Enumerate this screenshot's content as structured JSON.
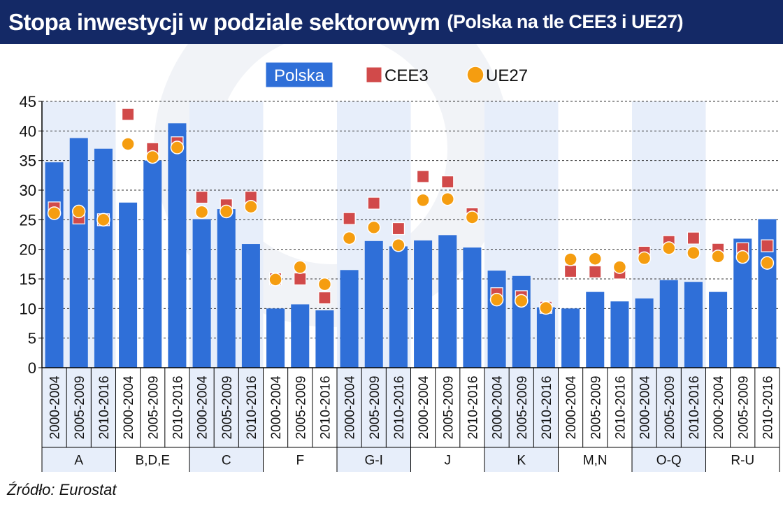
{
  "title": "Stopa inwestycji w podziale sektorowym",
  "subtitle": "(Polska na tle CEE3 i UE27)",
  "source": "Źródło: Eurostat",
  "colors": {
    "header_bg": "#142966",
    "bar": "#2f6fd8",
    "cee3": "#d14a4a",
    "ue27": "#f59d10",
    "band": "#e7eefa"
  },
  "chart_data": {
    "type": "bar",
    "ylim": [
      0,
      45
    ],
    "yticks": [
      "0",
      "5",
      "10",
      "15",
      "20",
      "25",
      "30",
      "35",
      "40",
      "45"
    ],
    "grid": true,
    "legend_position": "top-center",
    "groups": [
      {
        "label": "A",
        "categories": [
          "2000-2004",
          "2005-2009",
          "2010-2016"
        ]
      },
      {
        "label": "B,D,E",
        "categories": [
          "2000-2004",
          "2005-2009",
          "2010-2016"
        ]
      },
      {
        "label": "C",
        "categories": [
          "2000-2004",
          "2005-2009",
          "2010-2016"
        ]
      },
      {
        "label": "F",
        "categories": [
          "2000-2004",
          "2005-2009",
          "2010-2016"
        ]
      },
      {
        "label": "G-I",
        "categories": [
          "2000-2004",
          "2005-2009",
          "2010-2016"
        ]
      },
      {
        "label": "J",
        "categories": [
          "2000-2004",
          "2005-2009",
          "2010-2016"
        ]
      },
      {
        "label": "K",
        "categories": [
          "2000-2004",
          "2005-2009",
          "2010-2016"
        ]
      },
      {
        "label": "M,N",
        "categories": [
          "2000-2004",
          "2005-2009",
          "2010-2016"
        ]
      },
      {
        "label": "O-Q",
        "categories": [
          "2000-2004",
          "2005-2009",
          "2010-2016"
        ]
      },
      {
        "label": "R-U",
        "categories": [
          "2000-2004",
          "2005-2009",
          "2010-2016"
        ]
      }
    ],
    "series": [
      {
        "name": "Polska",
        "type": "bar",
        "values": [
          34.7,
          38.8,
          37.0,
          27.9,
          35.0,
          41.3,
          25.1,
          26.8,
          20.9,
          10.0,
          10.7,
          9.7,
          16.5,
          21.4,
          20.5,
          21.5,
          22.4,
          20.3,
          16.4,
          15.5,
          10.2,
          10.0,
          12.8,
          11.2,
          11.7,
          14.8,
          14.5,
          12.8,
          21.8,
          25.1
        ]
      },
      {
        "name": "CEE3",
        "type": "square",
        "values": [
          27.0,
          25.3,
          25.0,
          42.8,
          37.0,
          38.0,
          28.8,
          27.5,
          28.8,
          15.0,
          15.0,
          11.8,
          25.2,
          27.8,
          23.5,
          32.3,
          31.4,
          26.0,
          12.5,
          12.0,
          10.2,
          16.3,
          16.2,
          16.0,
          19.5,
          21.3,
          21.9,
          20.0,
          20.1,
          20.6
        ]
      },
      {
        "name": "UE27",
        "type": "circle",
        "values": [
          26.1,
          26.4,
          25.0,
          37.8,
          35.6,
          37.2,
          26.3,
          26.4,
          27.2,
          14.9,
          17.0,
          14.1,
          21.9,
          23.7,
          20.7,
          28.3,
          28.5,
          25.4,
          11.5,
          11.3,
          10.1,
          18.3,
          18.4,
          17.0,
          18.5,
          20.2,
          19.4,
          18.8,
          18.7,
          17.7
        ]
      }
    ]
  }
}
